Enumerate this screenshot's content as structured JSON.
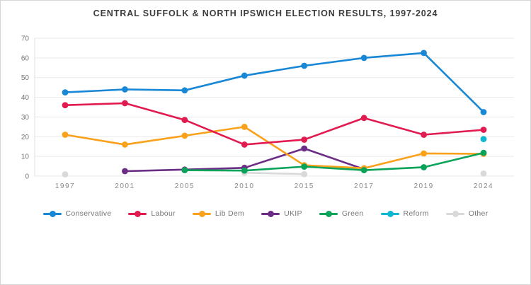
{
  "title": "CENTRAL SUFFOLK & NORTH IPSWICH ELECTION RESULTS, 1997-2024",
  "chart_data": {
    "type": "line",
    "title": "CENTRAL SUFFOLK & NORTH IPSWICH ELECTION RESULTS, 1997-2024",
    "xlabel": "",
    "ylabel": "",
    "categories": [
      "1997",
      "2001",
      "2005",
      "2010",
      "2015",
      "2017",
      "2019",
      "2024"
    ],
    "ylim": [
      0,
      70
    ],
    "yticks": [
      0,
      10,
      20,
      30,
      40,
      50,
      60,
      70
    ],
    "grid": "horizontal",
    "legend_position": "bottom",
    "series": [
      {
        "name": "Conservative",
        "color": "#1887d5",
        "values": [
          42.5,
          44,
          43.5,
          51,
          56,
          60,
          62.5,
          32.5
        ]
      },
      {
        "name": "Labour",
        "color": "#e11b4f",
        "values": [
          36,
          37,
          28.5,
          16,
          18.5,
          29.5,
          21,
          23.5
        ]
      },
      {
        "name": "Lib Dem",
        "color": "#f9a11b",
        "values": [
          21,
          16,
          20.5,
          25,
          5.5,
          4,
          11.5,
          11.3
        ]
      },
      {
        "name": "UKIP",
        "color": "#6b2d85",
        "values": [
          null,
          2.5,
          3.3,
          4.2,
          14,
          3.5,
          null,
          null
        ]
      },
      {
        "name": "Green",
        "color": "#09a35a",
        "values": [
          null,
          null,
          3,
          2.8,
          4.8,
          3,
          4.5,
          11.8
        ]
      },
      {
        "name": "Reform",
        "color": "#0cb8cf",
        "values": [
          null,
          null,
          null,
          null,
          null,
          null,
          null,
          18.8
        ]
      },
      {
        "name": "Other",
        "color": "#d9d9d9",
        "values": [
          0.9,
          null,
          null,
          1.7,
          1,
          null,
          null,
          1.3
        ]
      }
    ],
    "draw_order": [
      "Other",
      "UKIP",
      "Lib Dem",
      "Labour",
      "Conservative",
      "Green",
      "Reform"
    ]
  },
  "colors": {
    "background": "#ffffff",
    "frame_border": "#d6d6d6",
    "gridline": "#e9e9e9",
    "axis_line": "#e0e0e0",
    "y_tick_text": "#757575",
    "x_tick_text": "#8a8a8a",
    "title_text": "#3d3d3d",
    "legend_text": "#757575"
  }
}
